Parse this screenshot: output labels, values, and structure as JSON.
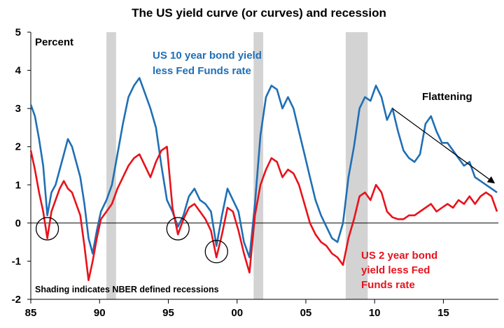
{
  "chart_data": {
    "type": "line",
    "title": "The US yield curve (or curves) and recession",
    "ylabel": "Percent",
    "xlim": [
      1985,
      2019
    ],
    "ylim": [
      -2,
      5
    ],
    "x_ticks": [
      {
        "value": 1985,
        "label": "85"
      },
      {
        "value": 1990,
        "label": "90"
      },
      {
        "value": 1995,
        "label": "95"
      },
      {
        "value": 2000,
        "label": "00"
      },
      {
        "value": 2005,
        "label": "05"
      },
      {
        "value": 2010,
        "label": "10"
      },
      {
        "value": 2015,
        "label": "15"
      }
    ],
    "y_ticks": [
      -2,
      -1,
      0,
      1,
      2,
      3,
      4,
      5
    ],
    "colors": {
      "blue": "#1f6fb5",
      "red": "#e8121b",
      "shade": "#d3d3d3"
    },
    "recessions": [
      [
        1990.5,
        1991.2
      ],
      [
        2001.2,
        2001.9
      ],
      [
        2007.9,
        2009.5
      ]
    ],
    "shading_note": "Shading indicates NBER defined recessions",
    "annotations": {
      "blue_label": [
        "US 10 year bond yield",
        "less Fed Funds rate"
      ],
      "red_label": [
        "US 2 year bond",
        "yield less Fed",
        "Funds rate"
      ],
      "flattening": "Flattening"
    },
    "circles": [
      {
        "x": 1986.2,
        "y": -0.15
      },
      {
        "x": 1995.7,
        "y": -0.15
      },
      {
        "x": 1998.5,
        "y": -0.75
      }
    ],
    "series": [
      {
        "name": "US 10 year bond yield less Fed Funds rate",
        "color": "#1f6fb5",
        "x": [
          1985.0,
          1985.3,
          1985.6,
          1985.9,
          1986.2,
          1986.5,
          1986.8,
          1987.1,
          1987.4,
          1987.7,
          1988.0,
          1988.3,
          1988.6,
          1988.9,
          1989.2,
          1989.5,
          1989.8,
          1990.1,
          1990.5,
          1990.9,
          1991.3,
          1991.7,
          1992.1,
          1992.5,
          1992.9,
          1993.3,
          1993.7,
          1994.1,
          1994.5,
          1994.9,
          1995.3,
          1995.7,
          1996.1,
          1996.5,
          1996.9,
          1997.3,
          1997.7,
          1998.1,
          1998.5,
          1998.9,
          1999.3,
          1999.7,
          2000.1,
          2000.5,
          2000.9,
          2001.3,
          2001.7,
          2002.1,
          2002.5,
          2002.9,
          2003.3,
          2003.7,
          2004.1,
          2004.5,
          2004.9,
          2005.3,
          2005.7,
          2006.1,
          2006.5,
          2006.9,
          2007.3,
          2007.7,
          2008.1,
          2008.5,
          2008.9,
          2009.3,
          2009.7,
          2010.1,
          2010.5,
          2010.9,
          2011.3,
          2011.7,
          2012.1,
          2012.5,
          2012.9,
          2013.3,
          2013.7,
          2014.1,
          2014.5,
          2014.9,
          2015.3,
          2015.7,
          2016.1,
          2016.5,
          2016.9,
          2017.3,
          2017.7,
          2018.1,
          2018.5,
          2018.9
        ],
        "y": [
          3.1,
          2.8,
          2.2,
          1.5,
          0.2,
          0.8,
          1.0,
          1.4,
          1.8,
          2.2,
          2.0,
          1.6,
          1.2,
          0.5,
          -0.4,
          -0.8,
          -0.2,
          0.3,
          0.6,
          1.0,
          1.8,
          2.6,
          3.3,
          3.6,
          3.8,
          3.4,
          3.0,
          2.5,
          1.5,
          0.6,
          0.3,
          -0.1,
          0.2,
          0.7,
          0.9,
          0.6,
          0.5,
          0.3,
          -0.6,
          0.2,
          0.9,
          0.6,
          0.3,
          -0.5,
          -0.9,
          0.5,
          2.3,
          3.3,
          3.6,
          3.5,
          3.0,
          3.3,
          3.0,
          2.4,
          1.8,
          1.2,
          0.6,
          0.2,
          -0.1,
          -0.4,
          -0.5,
          0.0,
          1.2,
          2.0,
          3.0,
          3.3,
          3.2,
          3.6,
          3.3,
          2.7,
          3.0,
          2.4,
          1.9,
          1.7,
          1.6,
          1.8,
          2.6,
          2.8,
          2.4,
          2.1,
          2.1,
          1.9,
          1.7,
          1.5,
          1.6,
          1.2,
          1.1,
          1.0,
          0.9,
          0.8
        ]
      },
      {
        "name": "US 2 year bond yield less Fed Funds rate",
        "color": "#e8121b",
        "x": [
          1985.0,
          1985.3,
          1985.6,
          1985.9,
          1986.2,
          1986.5,
          1986.8,
          1987.1,
          1987.4,
          1987.7,
          1988.0,
          1988.3,
          1988.6,
          1988.9,
          1989.2,
          1989.5,
          1989.8,
          1990.1,
          1990.5,
          1990.9,
          1991.3,
          1991.7,
          1992.1,
          1992.5,
          1992.9,
          1993.3,
          1993.7,
          1994.1,
          1994.5,
          1994.9,
          1995.3,
          1995.7,
          1996.1,
          1996.5,
          1996.9,
          1997.3,
          1997.7,
          1998.1,
          1998.5,
          1998.9,
          1999.3,
          1999.7,
          2000.1,
          2000.5,
          2000.9,
          2001.3,
          2001.7,
          2002.1,
          2002.5,
          2002.9,
          2003.3,
          2003.7,
          2004.1,
          2004.5,
          2004.9,
          2005.3,
          2005.7,
          2006.1,
          2006.5,
          2006.9,
          2007.3,
          2007.7,
          2008.1,
          2008.5,
          2008.9,
          2009.3,
          2009.7,
          2010.1,
          2010.5,
          2010.9,
          2011.3,
          2011.7,
          2012.1,
          2012.5,
          2012.9,
          2013.3,
          2013.7,
          2014.1,
          2014.5,
          2014.9,
          2015.3,
          2015.7,
          2016.1,
          2016.5,
          2016.9,
          2017.3,
          2017.7,
          2018.1,
          2018.5,
          2018.9
        ],
        "y": [
          1.9,
          1.4,
          0.8,
          0.3,
          -0.4,
          0.3,
          0.6,
          0.9,
          1.1,
          0.9,
          0.8,
          0.5,
          0.2,
          -0.6,
          -1.5,
          -1.0,
          -0.4,
          0.1,
          0.3,
          0.5,
          0.9,
          1.2,
          1.5,
          1.7,
          1.8,
          1.5,
          1.2,
          1.6,
          1.9,
          2.0,
          0.4,
          -0.3,
          0.1,
          0.4,
          0.5,
          0.3,
          0.1,
          -0.2,
          -0.9,
          -0.3,
          0.4,
          0.3,
          -0.2,
          -0.8,
          -1.3,
          0.2,
          1.0,
          1.4,
          1.7,
          1.6,
          1.2,
          1.4,
          1.3,
          1.0,
          0.5,
          0.0,
          -0.3,
          -0.5,
          -0.6,
          -0.8,
          -0.9,
          -1.1,
          -0.4,
          0.1,
          0.7,
          0.8,
          0.6,
          1.0,
          0.8,
          0.3,
          0.15,
          0.1,
          0.1,
          0.2,
          0.2,
          0.3,
          0.4,
          0.5,
          0.3,
          0.4,
          0.5,
          0.4,
          0.6,
          0.5,
          0.7,
          0.5,
          0.7,
          0.8,
          0.7,
          0.3
        ]
      }
    ]
  }
}
